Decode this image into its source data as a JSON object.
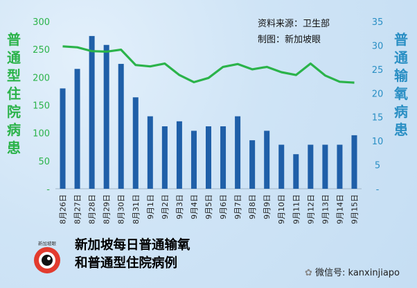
{
  "chart_data": {
    "type": "bar",
    "categories": [
      "8月26日",
      "8月27日",
      "8月28日",
      "8月29日",
      "8月30日",
      "8月31日",
      "9月1日",
      "9月2日",
      "9月3日",
      "9月4日",
      "9月5日",
      "9月6日",
      "9月7日",
      "9月8日",
      "9月9日",
      "9月10日",
      "9月11日",
      "9月12日",
      "9月13日",
      "9月14日",
      "9月15日"
    ],
    "series": [
      {
        "axis": "left",
        "type": "bar",
        "values": [
          180,
          215,
          274,
          258,
          224,
          164,
          130,
          112,
          121,
          104,
          112,
          112,
          130,
          87,
          104,
          79,
          62,
          79,
          79,
          79,
          96
        ]
      },
      {
        "axis": "right",
        "type": "line",
        "values": [
          29.8,
          29.6,
          28.8,
          28.7,
          29.1,
          25.9,
          25.6,
          26.2,
          23.8,
          22.3,
          23.2,
          25.5,
          26.1,
          25,
          25.5,
          24.4,
          23.8,
          26.2,
          23.7,
          22.4,
          22.2
        ]
      }
    ],
    "ylabel_left": "普通型住院病患",
    "ylabel_right": "普通输氧病患",
    "ylim_left": [
      0,
      300
    ],
    "ylim_right": [
      0,
      35
    ],
    "yticks_left": [
      "-",
      "50",
      "100",
      "150",
      "200",
      "250",
      "300"
    ],
    "yticks_right": [
      "-",
      "5",
      "10",
      "15",
      "20",
      "25",
      "30",
      "35"
    ],
    "grid": false
  },
  "source_line1": "资料来源：卫生部",
  "source_line2": "制图：新加坡眼",
  "title_line1": "新加坡每日普通输氧",
  "title_line2": "和普通型住院病例",
  "logo_text": "新加坡眼",
  "wechat_label": "微信号: kanxinjiapo",
  "colors": {
    "bar": "#1f5fa8",
    "line": "#2bb34a",
    "left_axis": "#2bb34a",
    "right_axis": "#2a8fc4"
  }
}
